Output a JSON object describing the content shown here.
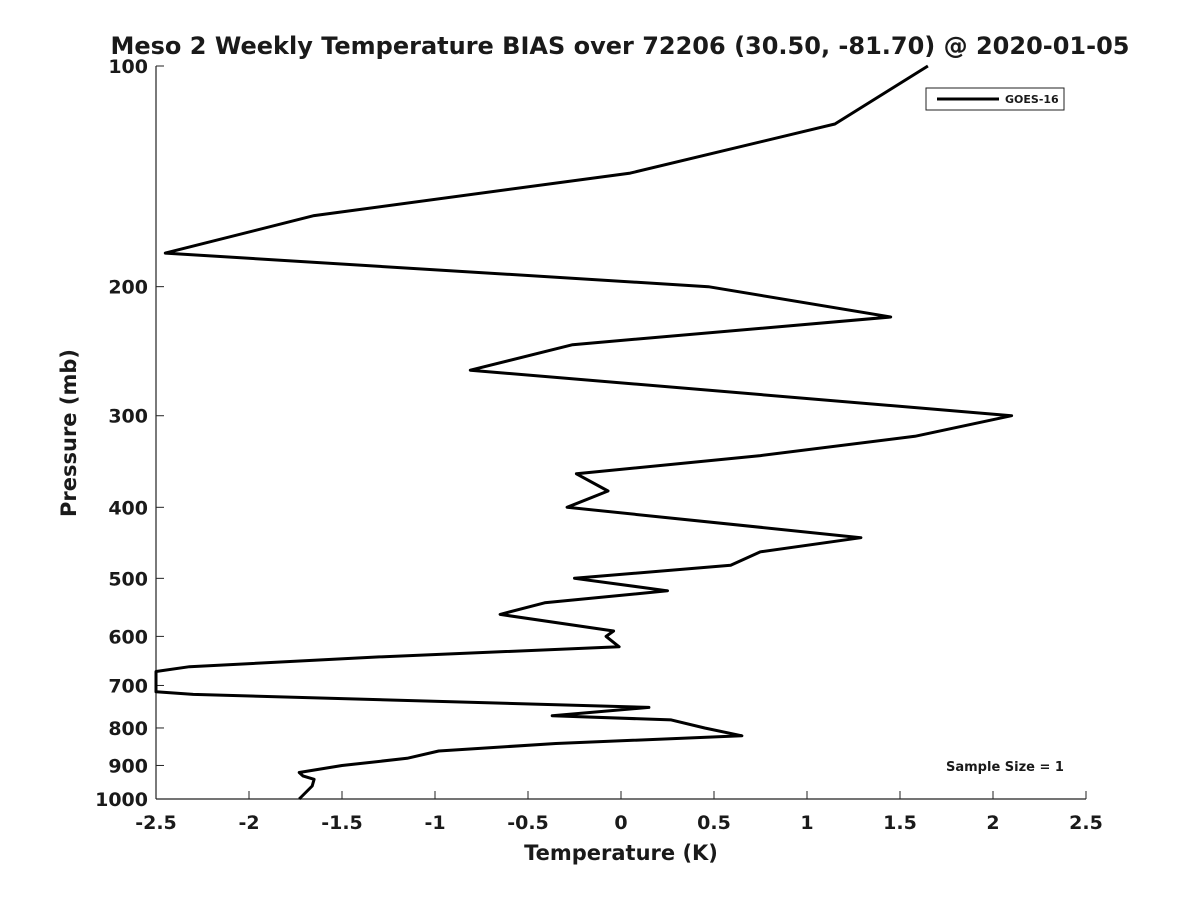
{
  "chart_data": {
    "type": "line",
    "title": "Meso 2 Weekly Temperature BIAS over 72206 (30.50, -81.70) @ 2020-01-05",
    "xlabel": "Temperature (K)",
    "ylabel": "Pressure (mb)",
    "xlim": [
      -2.5,
      2.5
    ],
    "ylim": [
      100,
      1000
    ],
    "y_scale": "log",
    "y_reversed": true,
    "x_ticks": [
      "-2.5",
      "-2",
      "-1.5",
      "-1",
      "-0.5",
      "0",
      "0.5",
      "1",
      "1.5",
      "2",
      "2.5"
    ],
    "y_ticks": [
      "100",
      "200",
      "300",
      "400",
      "500",
      "600",
      "700",
      "800",
      "900",
      "1000"
    ],
    "grid": false,
    "legend": {
      "position": "top-right",
      "entries": [
        "GOES-16"
      ]
    },
    "annotation": "Sample Size = 1",
    "series": [
      {
        "name": "GOES-16",
        "color": "#000000",
        "points": [
          [
            1.65,
            100
          ],
          [
            1.15,
            120
          ],
          [
            0.05,
            140
          ],
          [
            -1.65,
            160
          ],
          [
            -2.45,
            180
          ],
          [
            0.47,
            200
          ],
          [
            1.45,
            220
          ],
          [
            -0.26,
            240
          ],
          [
            -0.81,
            260
          ],
          [
            2.1,
            300
          ],
          [
            1.58,
            320
          ],
          [
            0.75,
            340
          ],
          [
            -0.24,
            360
          ],
          [
            -0.07,
            380
          ],
          [
            -0.29,
            400
          ],
          [
            1.29,
            440
          ],
          [
            0.75,
            460
          ],
          [
            0.59,
            480
          ],
          [
            -0.25,
            500
          ],
          [
            0.25,
            520
          ],
          [
            -0.41,
            540
          ],
          [
            -0.65,
            560
          ],
          [
            -0.04,
            590
          ],
          [
            -0.08,
            600
          ],
          [
            -0.01,
            620
          ],
          [
            -1.3,
            640
          ],
          [
            -2.32,
            660
          ],
          [
            -2.5,
            670
          ],
          [
            -2.5,
            714
          ],
          [
            -2.3,
            720
          ],
          [
            0.15,
            750
          ],
          [
            -0.37,
            770
          ],
          [
            0.27,
            780
          ],
          [
            0.45,
            800
          ],
          [
            0.65,
            820
          ],
          [
            -0.35,
            840
          ],
          [
            -0.98,
            860
          ],
          [
            -1.15,
            880
          ],
          [
            -1.5,
            900
          ],
          [
            -1.73,
            920
          ],
          [
            -1.71,
            930
          ],
          [
            -1.65,
            940
          ],
          [
            -1.66,
            960
          ],
          [
            -1.73,
            1000
          ]
        ]
      }
    ]
  }
}
